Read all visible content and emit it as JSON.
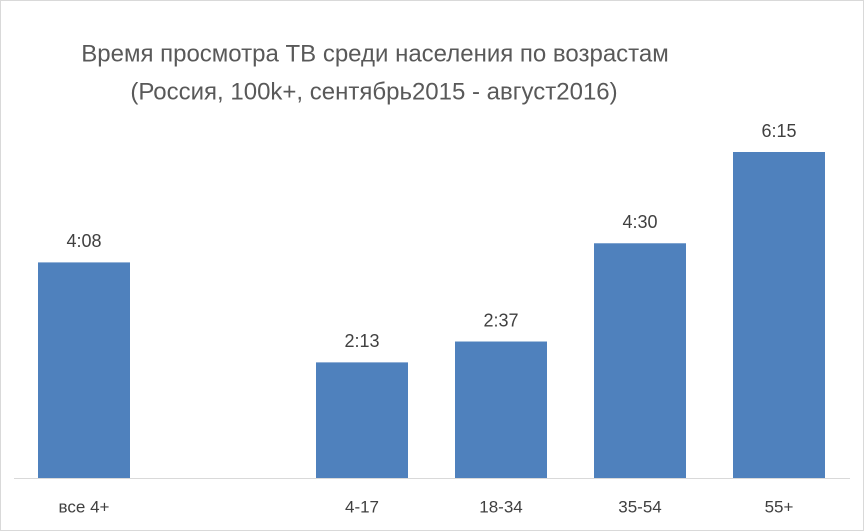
{
  "chart_data": {
    "type": "bar",
    "title": "Время просмотра ТВ среди населения по возрастам",
    "subtitle": "(Россия, 100k+, сентябрь2015 - август2016)",
    "categories": [
      "все 4+",
      null,
      "4-17",
      "18-34",
      "35-54",
      "55+"
    ],
    "values": [
      248,
      null,
      133,
      157,
      270,
      375
    ],
    "value_labels": [
      "4:08",
      null,
      "2:13",
      "2:37",
      "4:30",
      "6:15"
    ],
    "color": "#4f81bd"
  }
}
